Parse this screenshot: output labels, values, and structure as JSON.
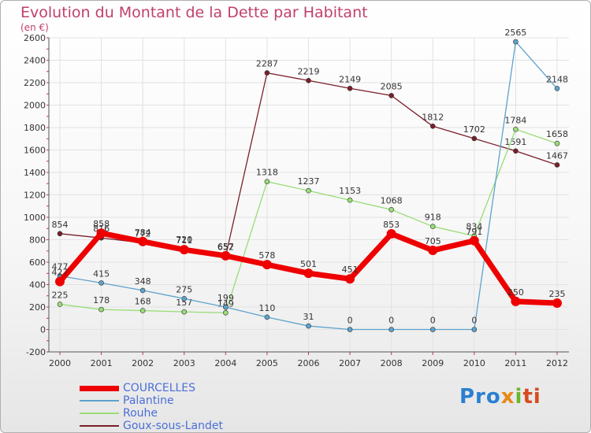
{
  "title": "Evolution du Montant de la Dette par Habitant",
  "subtitle": "(en €)",
  "logo": [
    "Pro",
    "x",
    "i",
    "ti"
  ],
  "chart_data": {
    "type": "line",
    "title": "Evolution du Montant de la Dette par Habitant",
    "subtitle": "(en €)",
    "xlabel": "",
    "ylabel": "",
    "x": [
      "2000",
      "2001",
      "2002",
      "2003",
      "2004",
      "2005",
      "2006",
      "2007",
      "2008",
      "2009",
      "2010",
      "2011",
      "2012"
    ],
    "ylim": [
      -200,
      2600
    ],
    "yticks": [
      -200,
      0,
      200,
      400,
      600,
      800,
      1000,
      1200,
      1400,
      1600,
      1800,
      2000,
      2200,
      2400,
      2600
    ],
    "grid": true,
    "legend_position": "bottom-left",
    "series": [
      {
        "name": "Goux-sous-Landet",
        "color": "#7a1f2a",
        "values": [
          854,
          816,
          772,
          720,
          652,
          2287,
          2219,
          2149,
          2085,
          1812,
          1702,
          1591,
          1467
        ]
      },
      {
        "name": "Rouhe",
        "color": "#99dd77",
        "values": [
          225,
          178,
          168,
          157,
          149,
          1318,
          1237,
          1153,
          1068,
          918,
          834,
          1784,
          1658
        ]
      },
      {
        "name": "Palantine",
        "color": "#5ea2cc",
        "values": [
          477,
          415,
          348,
          275,
          199,
          110,
          31,
          0,
          0,
          0,
          0,
          2565,
          2148
        ]
      },
      {
        "name": "COURCELLES",
        "color": "#ee0000",
        "values": [
          427,
          858,
          784,
          711,
          657,
          578,
          501,
          451,
          853,
          705,
          791,
          250,
          235
        ]
      }
    ],
    "legend_order": [
      "COURCELLES",
      "Palantine",
      "Rouhe",
      "Goux-sous-Landet"
    ]
  }
}
